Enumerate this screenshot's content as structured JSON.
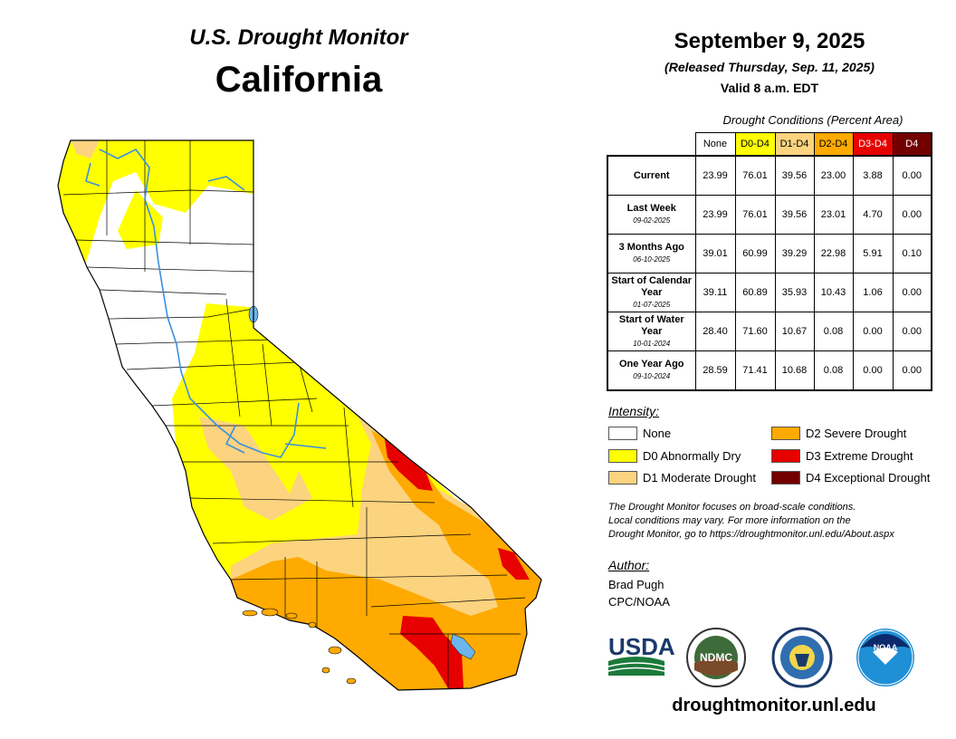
{
  "header": {
    "program": "U.S. Drought Monitor",
    "state": "California",
    "date": "September 9, 2025",
    "released": "(Released Thursday, Sep. 11, 2025)",
    "valid": "Valid 8 a.m. EDT"
  },
  "table": {
    "caption": "Drought Conditions (Percent Area)",
    "columns": [
      "None",
      "D0-D4",
      "D1-D4",
      "D2-D4",
      "D3-D4",
      "D4"
    ],
    "column_colors": [
      "#ffffff",
      "#ffff00",
      "#fcd37f",
      "#ffaa00",
      "#e60000",
      "#730000"
    ],
    "rows": [
      {
        "label": "Current",
        "date": "",
        "values": [
          "23.99",
          "76.01",
          "39.56",
          "23.00",
          "3.88",
          "0.00"
        ]
      },
      {
        "label": "Last Week",
        "date": "09-02-2025",
        "values": [
          "23.99",
          "76.01",
          "39.56",
          "23.01",
          "4.70",
          "0.00"
        ]
      },
      {
        "label": "3 Months Ago",
        "date": "06-10-2025",
        "values": [
          "39.01",
          "60.99",
          "39.29",
          "22.98",
          "5.91",
          "0.10"
        ]
      },
      {
        "label": "Start of Calendar Year",
        "date": "01-07-2025",
        "values": [
          "39.11",
          "60.89",
          "35.93",
          "10.43",
          "1.06",
          "0.00"
        ]
      },
      {
        "label": "Start of Water Year",
        "date": "10-01-2024",
        "values": [
          "28.40",
          "71.60",
          "10.67",
          "0.08",
          "0.00",
          "0.00"
        ]
      },
      {
        "label": "One Year Ago",
        "date": "09-10-2024",
        "values": [
          "28.59",
          "71.41",
          "10.68",
          "0.08",
          "0.00",
          "0.00"
        ]
      }
    ]
  },
  "legend": {
    "title": "Intensity:",
    "items": [
      {
        "label": "None",
        "color": "#ffffff"
      },
      {
        "label": "D0 Abnormally Dry",
        "color": "#ffff00"
      },
      {
        "label": "D1 Moderate Drought",
        "color": "#fcd37f"
      },
      {
        "label": "D2 Severe Drought",
        "color": "#ffaa00"
      },
      {
        "label": "D3 Extreme Drought",
        "color": "#e60000"
      },
      {
        "label": "D4 Exceptional Drought",
        "color": "#730000"
      }
    ]
  },
  "note": {
    "line1": "The Drought Monitor focuses on broad-scale conditions.",
    "line2": "Local conditions may vary. For more information on the",
    "line3": "Drought Monitor, go to https://droughtmonitor.unl.edu/About.aspx"
  },
  "author": {
    "label": "Author:",
    "name": "Brad Pugh",
    "org": "CPC/NOAA"
  },
  "logos": {
    "usda": "USDA",
    "ndmc": "NDMC",
    "noaa": "NOAA"
  },
  "footer": {
    "site": "droughtmonitor.unl.edu"
  },
  "map_colors": {
    "water": "#6cb4ee",
    "river": "#3b8fe0",
    "border": "#000000"
  }
}
